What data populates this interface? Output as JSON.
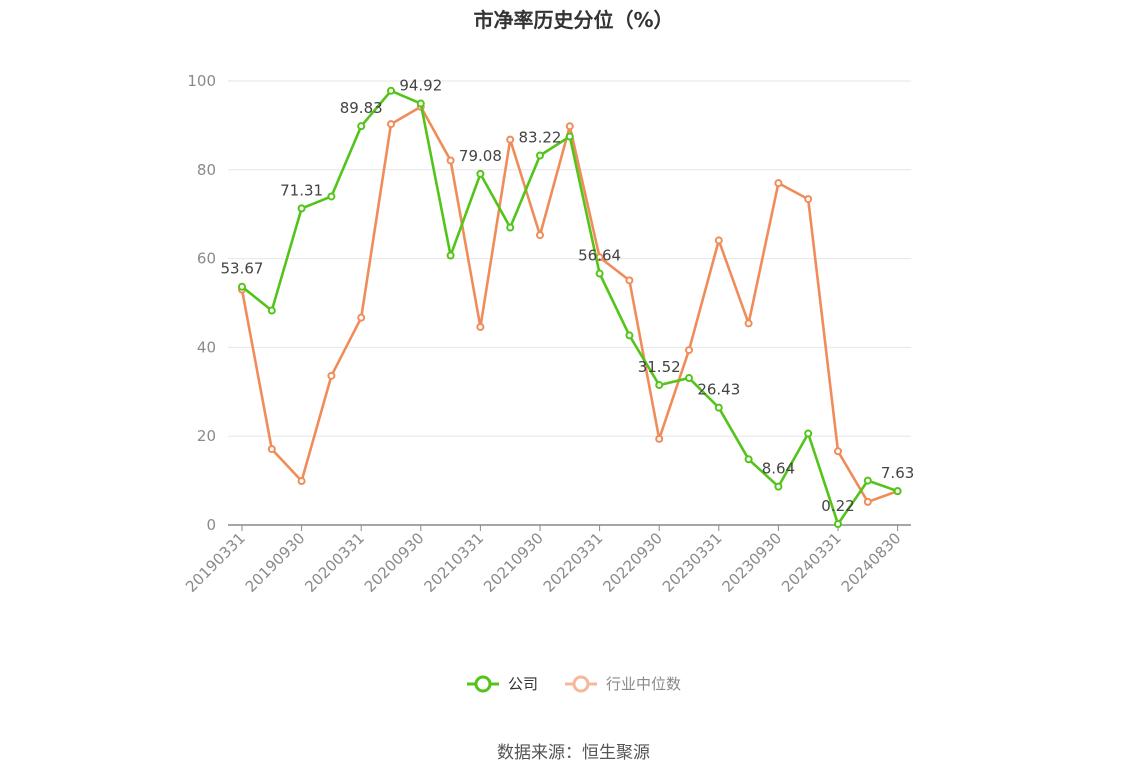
{
  "title": "市净率历史分位（%）",
  "source": "数据来源：恒生聚源",
  "legend": [
    {
      "name": "公司",
      "color": "#52c41a",
      "text_color": "#333333"
    },
    {
      "name": "行业中位数",
      "color": "#f08c5a",
      "text_color": "#8a8a8a"
    }
  ],
  "chart_data": {
    "type": "line",
    "title": "市净率历史分位（%）",
    "xlabel": "",
    "ylabel": "",
    "ylim": [
      0,
      100
    ],
    "yticks": [
      0,
      20,
      40,
      60,
      80,
      100
    ],
    "grid": true,
    "legend_position": "bottom",
    "x": [
      "20190331",
      "20190630",
      "20190930",
      "20191231",
      "20200331",
      "20200630",
      "20200930",
      "20201231",
      "20210331",
      "20210630",
      "20210930",
      "20211231",
      "20220331",
      "20220630",
      "20220930",
      "20221231",
      "20230331",
      "20230630",
      "20230930",
      "20231231",
      "20240331",
      "20240630",
      "20240830"
    ],
    "x_tick_labels": [
      "20190331",
      "20190930",
      "20200331",
      "20200930",
      "20210331",
      "20210930",
      "20220331",
      "20220930",
      "20230331",
      "20230930",
      "20240331",
      "20240830"
    ],
    "series": [
      {
        "name": "公司",
        "color": "#52c41a",
        "values": [
          53.67,
          48.3,
          71.31,
          74.0,
          89.83,
          97.8,
          94.92,
          60.7,
          79.08,
          67.0,
          83.22,
          87.5,
          56.64,
          42.7,
          31.52,
          33.1,
          26.43,
          14.8,
          8.64,
          20.6,
          0.22,
          10.0,
          7.63
        ],
        "labels": [
          "53.67",
          null,
          "71.31",
          null,
          "89.83",
          null,
          "94.92",
          null,
          "79.08",
          null,
          "83.22",
          null,
          "56.64",
          null,
          "31.52",
          null,
          "26.43",
          null,
          "8.64",
          null,
          "0.22",
          null,
          "7.63"
        ]
      },
      {
        "name": "行业中位数",
        "color": "#f08c5a",
        "values": [
          53.0,
          17.1,
          9.9,
          33.6,
          46.7,
          90.3,
          94.2,
          82.1,
          44.6,
          86.8,
          65.3,
          89.8,
          60.3,
          55.1,
          19.4,
          39.4,
          64.1,
          45.4,
          77.0,
          73.4,
          16.6,
          5.2,
          7.63
        ]
      }
    ]
  }
}
